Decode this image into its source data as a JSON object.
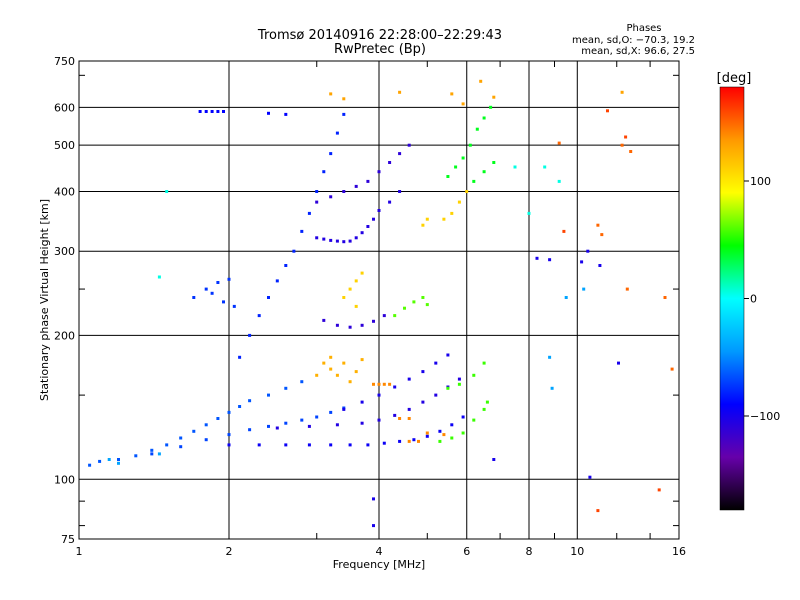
{
  "chart_data": {
    "type": "scatter",
    "title": "Tromsø 20140916 22:28:00–22:29:43",
    "subtitle": "RwPretec (Bp)",
    "xlabel": "Frequency [MHz]",
    "ylabel": "Stationary phase Virtual Height [km]",
    "x_scale": "log",
    "y_scale": "log",
    "xlim": [
      1,
      16
    ],
    "ylim": [
      75,
      750
    ],
    "grid": true,
    "x_ticks": [
      1,
      2,
      4,
      6,
      8,
      10,
      16
    ],
    "x_tick_labels": [
      "1",
      "2",
      "4",
      "6",
      "8",
      "10",
      "16"
    ],
    "x_minor_ticks": [
      3,
      5,
      7,
      9,
      12,
      14
    ],
    "y_ticks": [
      75,
      100,
      200,
      300,
      400,
      500,
      600,
      750
    ],
    "y_tick_labels": [
      "75",
      "100",
      "200",
      "300",
      "400",
      "500",
      "600",
      "750"
    ],
    "y_minor_ticks": [
      80,
      90,
      150,
      250,
      700
    ],
    "stats": {
      "heading": "Phases",
      "o_line": "mean, sd,O: −70.3, 19.2",
      "x_line": "mean, sd,X:  96.6, 27.5"
    },
    "colorbar": {
      "label": "[deg]",
      "range": [
        -180,
        180
      ],
      "ticks": [
        100,
        0,
        -100
      ],
      "tick_labels": [
        "100",
        "0",
        "−100"
      ],
      "colors": [
        "#000000",
        "#6600aa",
        "#0000ff",
        "#0099ff",
        "#00ffff",
        "#00ff00",
        "#ffff00",
        "#ff9900",
        "#ff0000"
      ]
    },
    "traces": [
      {
        "name": "",
        "phase": -65,
        "points": [
          [
            1.05,
            107
          ],
          [
            1.1,
            109
          ],
          [
            1.2,
            110
          ],
          [
            1.3,
            112
          ],
          [
            1.4,
            115
          ],
          [
            1.5,
            118
          ],
          [
            1.6,
            122
          ],
          [
            1.7,
            126
          ],
          [
            1.8,
            130
          ],
          [
            1.9,
            134
          ],
          [
            2.0,
            138
          ],
          [
            2.1,
            142
          ],
          [
            2.2,
            146
          ],
          [
            2.4,
            150
          ],
          [
            2.6,
            155
          ],
          [
            2.8,
            160
          ]
        ]
      },
      {
        "name": "",
        "phase": -70,
        "points": [
          [
            1.4,
            113
          ],
          [
            1.6,
            117
          ],
          [
            1.8,
            121
          ],
          [
            2.0,
            124
          ],
          [
            2.2,
            127
          ],
          [
            2.4,
            129
          ],
          [
            2.6,
            131
          ],
          [
            2.8,
            133
          ],
          [
            3.0,
            135
          ],
          [
            3.2,
            138
          ],
          [
            3.4,
            141
          ]
        ]
      },
      {
        "name": "",
        "phase": -95,
        "points": [
          [
            2.0,
            118
          ],
          [
            2.3,
            118
          ],
          [
            2.6,
            118
          ],
          [
            2.9,
            118
          ],
          [
            3.2,
            118
          ],
          [
            3.5,
            118
          ],
          [
            3.8,
            118
          ],
          [
            4.1,
            119
          ],
          [
            4.4,
            120
          ],
          [
            4.7,
            121
          ],
          [
            5.0,
            123
          ],
          [
            5.3,
            126
          ],
          [
            5.6,
            130
          ],
          [
            5.9,
            135
          ]
        ]
      },
      {
        "name": "",
        "phase": -105,
        "points": [
          [
            2.5,
            128
          ],
          [
            2.9,
            129
          ],
          [
            3.3,
            130
          ],
          [
            3.7,
            131
          ],
          [
            4.0,
            133
          ],
          [
            4.3,
            136
          ],
          [
            4.6,
            140
          ],
          [
            4.9,
            145
          ],
          [
            5.2,
            150
          ],
          [
            5.5,
            156
          ],
          [
            5.8,
            162
          ]
        ]
      },
      {
        "name": "",
        "phase": -100,
        "points": [
          [
            3.4,
            140
          ],
          [
            3.7,
            145
          ],
          [
            4.0,
            150
          ],
          [
            4.3,
            156
          ],
          [
            4.6,
            162
          ],
          [
            4.9,
            168
          ],
          [
            5.2,
            175
          ],
          [
            5.5,
            182
          ]
        ]
      },
      {
        "name": "",
        "phase": 140,
        "points": [
          [
            3.9,
            158
          ],
          [
            4.0,
            158
          ],
          [
            4.1,
            158
          ],
          [
            4.2,
            158
          ],
          [
            4.4,
            134
          ],
          [
            4.6,
            134
          ],
          [
            5.0,
            125
          ],
          [
            5.4,
            124
          ],
          [
            4.6,
            120
          ],
          [
            4.8,
            120
          ]
        ]
      },
      {
        "name": "",
        "phase": 55,
        "points": [
          [
            5.3,
            120
          ],
          [
            5.6,
            122
          ],
          [
            5.9,
            125
          ],
          [
            6.2,
            133
          ],
          [
            6.5,
            140
          ],
          [
            6.6,
            145
          ],
          [
            5.5,
            155
          ],
          [
            5.8,
            158
          ],
          [
            6.2,
            165
          ],
          [
            6.5,
            175
          ]
        ]
      },
      {
        "name": "",
        "phase": 125,
        "points": [
          [
            3.1,
            175
          ],
          [
            3.2,
            170
          ],
          [
            3.3,
            165
          ],
          [
            3.5,
            160
          ],
          [
            3.6,
            168
          ],
          [
            3.7,
            178
          ],
          [
            3.0,
            165
          ],
          [
            3.2,
            180
          ],
          [
            3.4,
            175
          ]
        ]
      },
      {
        "name": "",
        "phase": -75,
        "points": [
          [
            1.7,
            240
          ],
          [
            1.8,
            250
          ],
          [
            1.9,
            258
          ],
          [
            2.0,
            262
          ],
          [
            1.85,
            245
          ],
          [
            1.95,
            235
          ],
          [
            2.05,
            230
          ]
        ]
      },
      {
        "name": "",
        "phase": -80,
        "points": [
          [
            2.1,
            180
          ],
          [
            2.2,
            200
          ],
          [
            2.3,
            220
          ],
          [
            2.4,
            240
          ],
          [
            2.5,
            260
          ],
          [
            2.6,
            280
          ],
          [
            2.7,
            300
          ],
          [
            2.8,
            330
          ],
          [
            2.9,
            360
          ],
          [
            3.0,
            400
          ],
          [
            3.1,
            440
          ],
          [
            3.2,
            480
          ],
          [
            3.3,
            530
          ],
          [
            3.4,
            580
          ]
        ]
      },
      {
        "name": "",
        "phase": -105,
        "points": [
          [
            3.0,
            320
          ],
          [
            3.1,
            318
          ],
          [
            3.2,
            316
          ],
          [
            3.3,
            315
          ],
          [
            3.4,
            314
          ],
          [
            3.5,
            315
          ],
          [
            3.6,
            320
          ],
          [
            3.7,
            328
          ],
          [
            3.8,
            338
          ],
          [
            3.9,
            350
          ],
          [
            4.0,
            365
          ],
          [
            4.2,
            380
          ],
          [
            4.4,
            400
          ]
        ]
      },
      {
        "name": "",
        "phase": -110,
        "points": [
          [
            3.0,
            380
          ],
          [
            3.2,
            390
          ],
          [
            3.4,
            400
          ],
          [
            3.6,
            410
          ],
          [
            3.8,
            420
          ],
          [
            4.0,
            440
          ],
          [
            4.2,
            460
          ],
          [
            4.4,
            480
          ],
          [
            4.6,
            500
          ]
        ]
      },
      {
        "name": "",
        "phase": -110,
        "points": [
          [
            3.1,
            215
          ],
          [
            3.3,
            210
          ],
          [
            3.5,
            208
          ],
          [
            3.7,
            210
          ],
          [
            3.9,
            214
          ],
          [
            4.1,
            220
          ]
        ]
      },
      {
        "name": "",
        "phase": 60,
        "points": [
          [
            4.3,
            220
          ],
          [
            4.5,
            228
          ],
          [
            4.7,
            235
          ],
          [
            4.9,
            240
          ],
          [
            5.0,
            232
          ]
        ]
      },
      {
        "name": "",
        "phase": 110,
        "points": [
          [
            3.4,
            240
          ],
          [
            3.5,
            250
          ],
          [
            3.6,
            260
          ],
          [
            3.7,
            270
          ],
          [
            3.6,
            230
          ]
        ]
      },
      {
        "name": "",
        "phase": 40,
        "points": [
          [
            5.5,
            430
          ],
          [
            5.7,
            450
          ],
          [
            5.9,
            470
          ],
          [
            6.1,
            500
          ],
          [
            6.3,
            540
          ],
          [
            6.5,
            570
          ],
          [
            6.7,
            600
          ],
          [
            6.2,
            420
          ],
          [
            6.5,
            440
          ],
          [
            6.8,
            460
          ]
        ]
      },
      {
        "name": "",
        "phase": 110,
        "points": [
          [
            5.4,
            350
          ],
          [
            5.6,
            360
          ],
          [
            5.8,
            380
          ],
          [
            6.0,
            400
          ],
          [
            4.9,
            340
          ],
          [
            5.0,
            350
          ]
        ]
      },
      {
        "name": "",
        "phase": -90,
        "points": [
          [
            1.75,
            588
          ],
          [
            1.8,
            588
          ],
          [
            1.85,
            588
          ],
          [
            1.9,
            588
          ],
          [
            1.95,
            588
          ],
          [
            2.4,
            583
          ],
          [
            2.6,
            580
          ]
        ]
      },
      {
        "name": "",
        "phase": 130,
        "points": [
          [
            3.2,
            640
          ],
          [
            3.4,
            625
          ],
          [
            4.4,
            645
          ],
          [
            5.6,
            640
          ],
          [
            5.9,
            610
          ],
          [
            6.8,
            630
          ],
          [
            6.4,
            680
          ],
          [
            12.3,
            645
          ]
        ]
      },
      {
        "name": "",
        "phase": 150,
        "points": [
          [
            9.2,
            505
          ],
          [
            12.3,
            500
          ],
          [
            12.8,
            485
          ],
          [
            11.0,
            340
          ],
          [
            11.2,
            325
          ],
          [
            12.6,
            250
          ],
          [
            15.0,
            240
          ],
          [
            15.5,
            170
          ]
        ]
      },
      {
        "name": "",
        "phase": -100,
        "points": [
          [
            8.3,
            290
          ],
          [
            8.8,
            288
          ],
          [
            10.2,
            285
          ],
          [
            10.5,
            300
          ],
          [
            11.1,
            280
          ],
          [
            12.1,
            175
          ],
          [
            10.6,
            101
          ],
          [
            3.9,
            91
          ],
          [
            3.9,
            80
          ],
          [
            6.8,
            110
          ]
        ]
      },
      {
        "name": "",
        "phase": -40,
        "points": [
          [
            1.2,
            108
          ],
          [
            1.15,
            110
          ],
          [
            1.45,
            113
          ],
          [
            8.9,
            155
          ],
          [
            8.8,
            180
          ],
          [
            9.5,
            240
          ],
          [
            10.3,
            250
          ]
        ]
      },
      {
        "name": "",
        "phase": 5,
        "points": [
          [
            1.45,
            265
          ],
          [
            1.5,
            400
          ],
          [
            7.5,
            450
          ],
          [
            8.6,
            450
          ],
          [
            9.2,
            420
          ],
          [
            8.0,
            360
          ]
        ]
      },
      {
        "name": "",
        "phase": 160,
        "points": [
          [
            11.0,
            86
          ],
          [
            14.6,
            95
          ],
          [
            9.4,
            330
          ],
          [
            12.5,
            520
          ],
          [
            11.5,
            590
          ]
        ]
      }
    ]
  }
}
